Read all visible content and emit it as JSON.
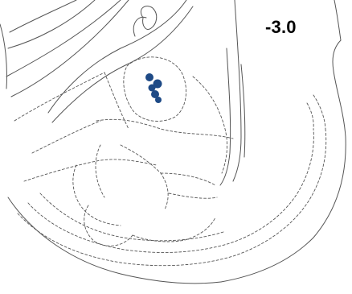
{
  "figure": {
    "section_label": "-3.0"
  },
  "colors": {
    "outline": "#555555",
    "marker": "#1e4a86"
  },
  "markers": {
    "count": 5
  }
}
